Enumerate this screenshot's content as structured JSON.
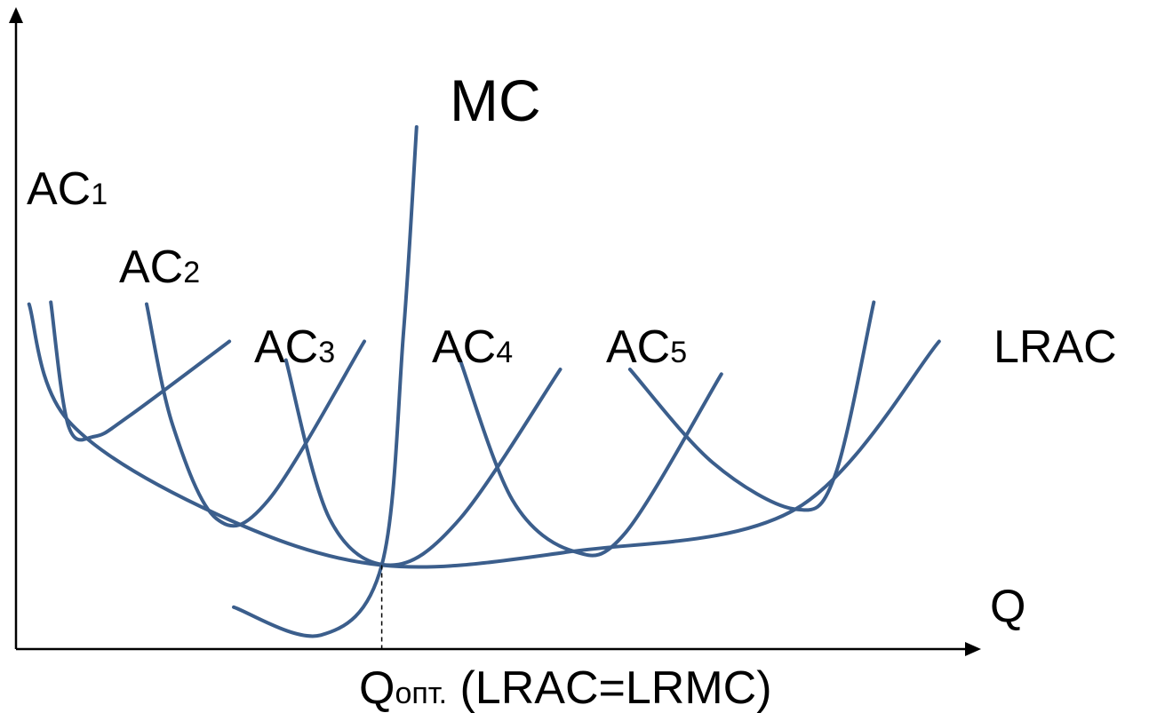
{
  "chart_data": {
    "type": "line",
    "title": "",
    "xlabel": "Q",
    "ylabel": "",
    "curve_color": "#3B5E8C",
    "axis_color": "#000000",
    "x_marker": {
      "main": "Q",
      "sub": "опт.",
      "rest": " (LRAC=LRMC)",
      "x": 4.2
    },
    "series": [
      {
        "name": "AC1",
        "label": {
          "main": "AC",
          "sub": "1"
        },
        "points": [
          [
            0.4,
            3.72
          ],
          [
            0.6,
            2.4
          ],
          [
            0.9,
            2.28
          ],
          [
            1.3,
            2.5
          ],
          [
            2.45,
            3.3
          ]
        ]
      },
      {
        "name": "AC2",
        "label": {
          "main": "AC",
          "sub": "2"
        },
        "points": [
          [
            1.5,
            3.7
          ],
          [
            1.8,
            2.4
          ],
          [
            2.3,
            1.4
          ],
          [
            2.9,
            1.6
          ],
          [
            4.0,
            3.3
          ]
        ]
      },
      {
        "name": "AC3",
        "label": {
          "main": "AC",
          "sub": "3"
        },
        "points": [
          [
            3.1,
            3.1
          ],
          [
            3.6,
            1.4
          ],
          [
            4.3,
            0.9
          ],
          [
            5.1,
            1.4
          ],
          [
            6.25,
            3.0
          ]
        ]
      },
      {
        "name": "AC4",
        "label": {
          "main": "AC",
          "sub": "4"
        },
        "points": [
          [
            5.1,
            3.1
          ],
          [
            5.7,
            1.6
          ],
          [
            6.4,
            1.05
          ],
          [
            7.0,
            1.25
          ],
          [
            8.1,
            2.95
          ]
        ]
      },
      {
        "name": "AC5",
        "label": {
          "main": "AC",
          "sub": "5"
        },
        "points": [
          [
            7.05,
            3.0
          ],
          [
            8.0,
            2.0
          ],
          [
            8.95,
            1.5
          ],
          [
            9.4,
            1.85
          ],
          [
            9.85,
            3.72
          ]
        ]
      },
      {
        "name": "LRAC",
        "label": {
          "main": "LRAC",
          "sub": ""
        },
        "points": [
          [
            0.15,
            3.7
          ],
          [
            0.6,
            2.45
          ],
          [
            2.3,
            1.45
          ],
          [
            4.2,
            0.9
          ],
          [
            6.4,
            1.05
          ],
          [
            8.95,
            1.5
          ],
          [
            10.6,
            3.3
          ]
        ]
      },
      {
        "name": "MC",
        "label": {
          "main": "MC",
          "sub": ""
        },
        "points": [
          [
            2.5,
            0.45
          ],
          [
            3.5,
            0.15
          ],
          [
            4.2,
            0.9
          ],
          [
            4.45,
            3.4
          ],
          [
            4.6,
            5.6
          ]
        ]
      }
    ],
    "grid": false
  }
}
